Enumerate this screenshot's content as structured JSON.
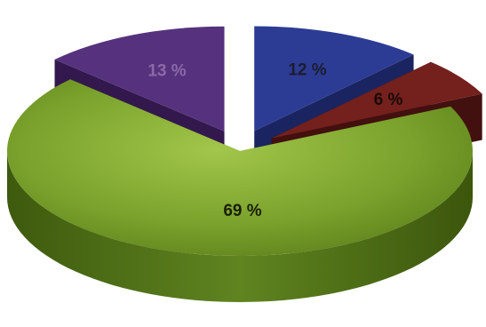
{
  "chart_data": {
    "type": "pie",
    "style": "3d-exploded",
    "title": "",
    "legend": "none",
    "slices": [
      {
        "value": 12,
        "label": "12 %",
        "color": "#2c3c94",
        "side_color": "#1a2460",
        "label_color": "#1c1c30",
        "exploded": true
      },
      {
        "value": 6,
        "label": "6 %",
        "color": "#74201c",
        "side_color": "#42100e",
        "label_color": "#1a0a08",
        "exploded": true
      },
      {
        "value": 69,
        "label": "69 %",
        "color": "#7aa22c",
        "side_color": "#4c6a14",
        "label_color": "#1a1f08",
        "exploded": false
      },
      {
        "value": 13,
        "label": "13 %",
        "color": "#56327e",
        "side_color": "#33184d",
        "label_color": "#8a6aa6",
        "exploded": true
      }
    ]
  }
}
